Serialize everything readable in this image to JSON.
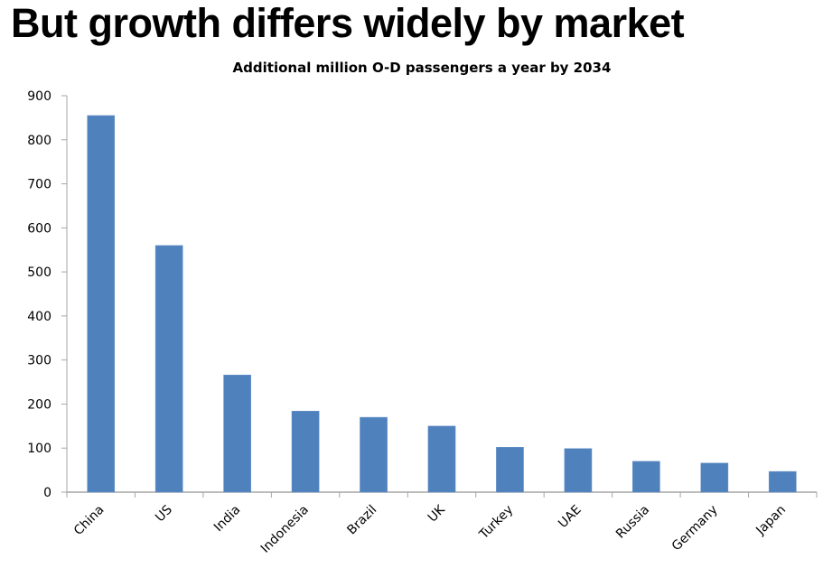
{
  "slide": {
    "heading": "But growth differs widely by market"
  },
  "chart_data": {
    "type": "bar",
    "title": "Additional million O-D passengers a year by 2034",
    "xlabel": "",
    "ylabel": "",
    "categories": [
      "China",
      "US",
      "India",
      "Indonesia",
      "Brazil",
      "UK",
      "Turkey",
      "UAE",
      "Russia",
      "Germany",
      "Japan"
    ],
    "values": [
      855,
      560,
      266,
      184,
      170,
      150,
      102,
      99,
      70,
      66,
      47
    ],
    "ylim": [
      0,
      900
    ],
    "yticks": [
      0,
      100,
      200,
      300,
      400,
      500,
      600,
      700,
      800,
      900
    ],
    "grid": false,
    "legend": "none",
    "bar_color": "#4F81BD",
    "axis_color": "#A6A6A6"
  }
}
